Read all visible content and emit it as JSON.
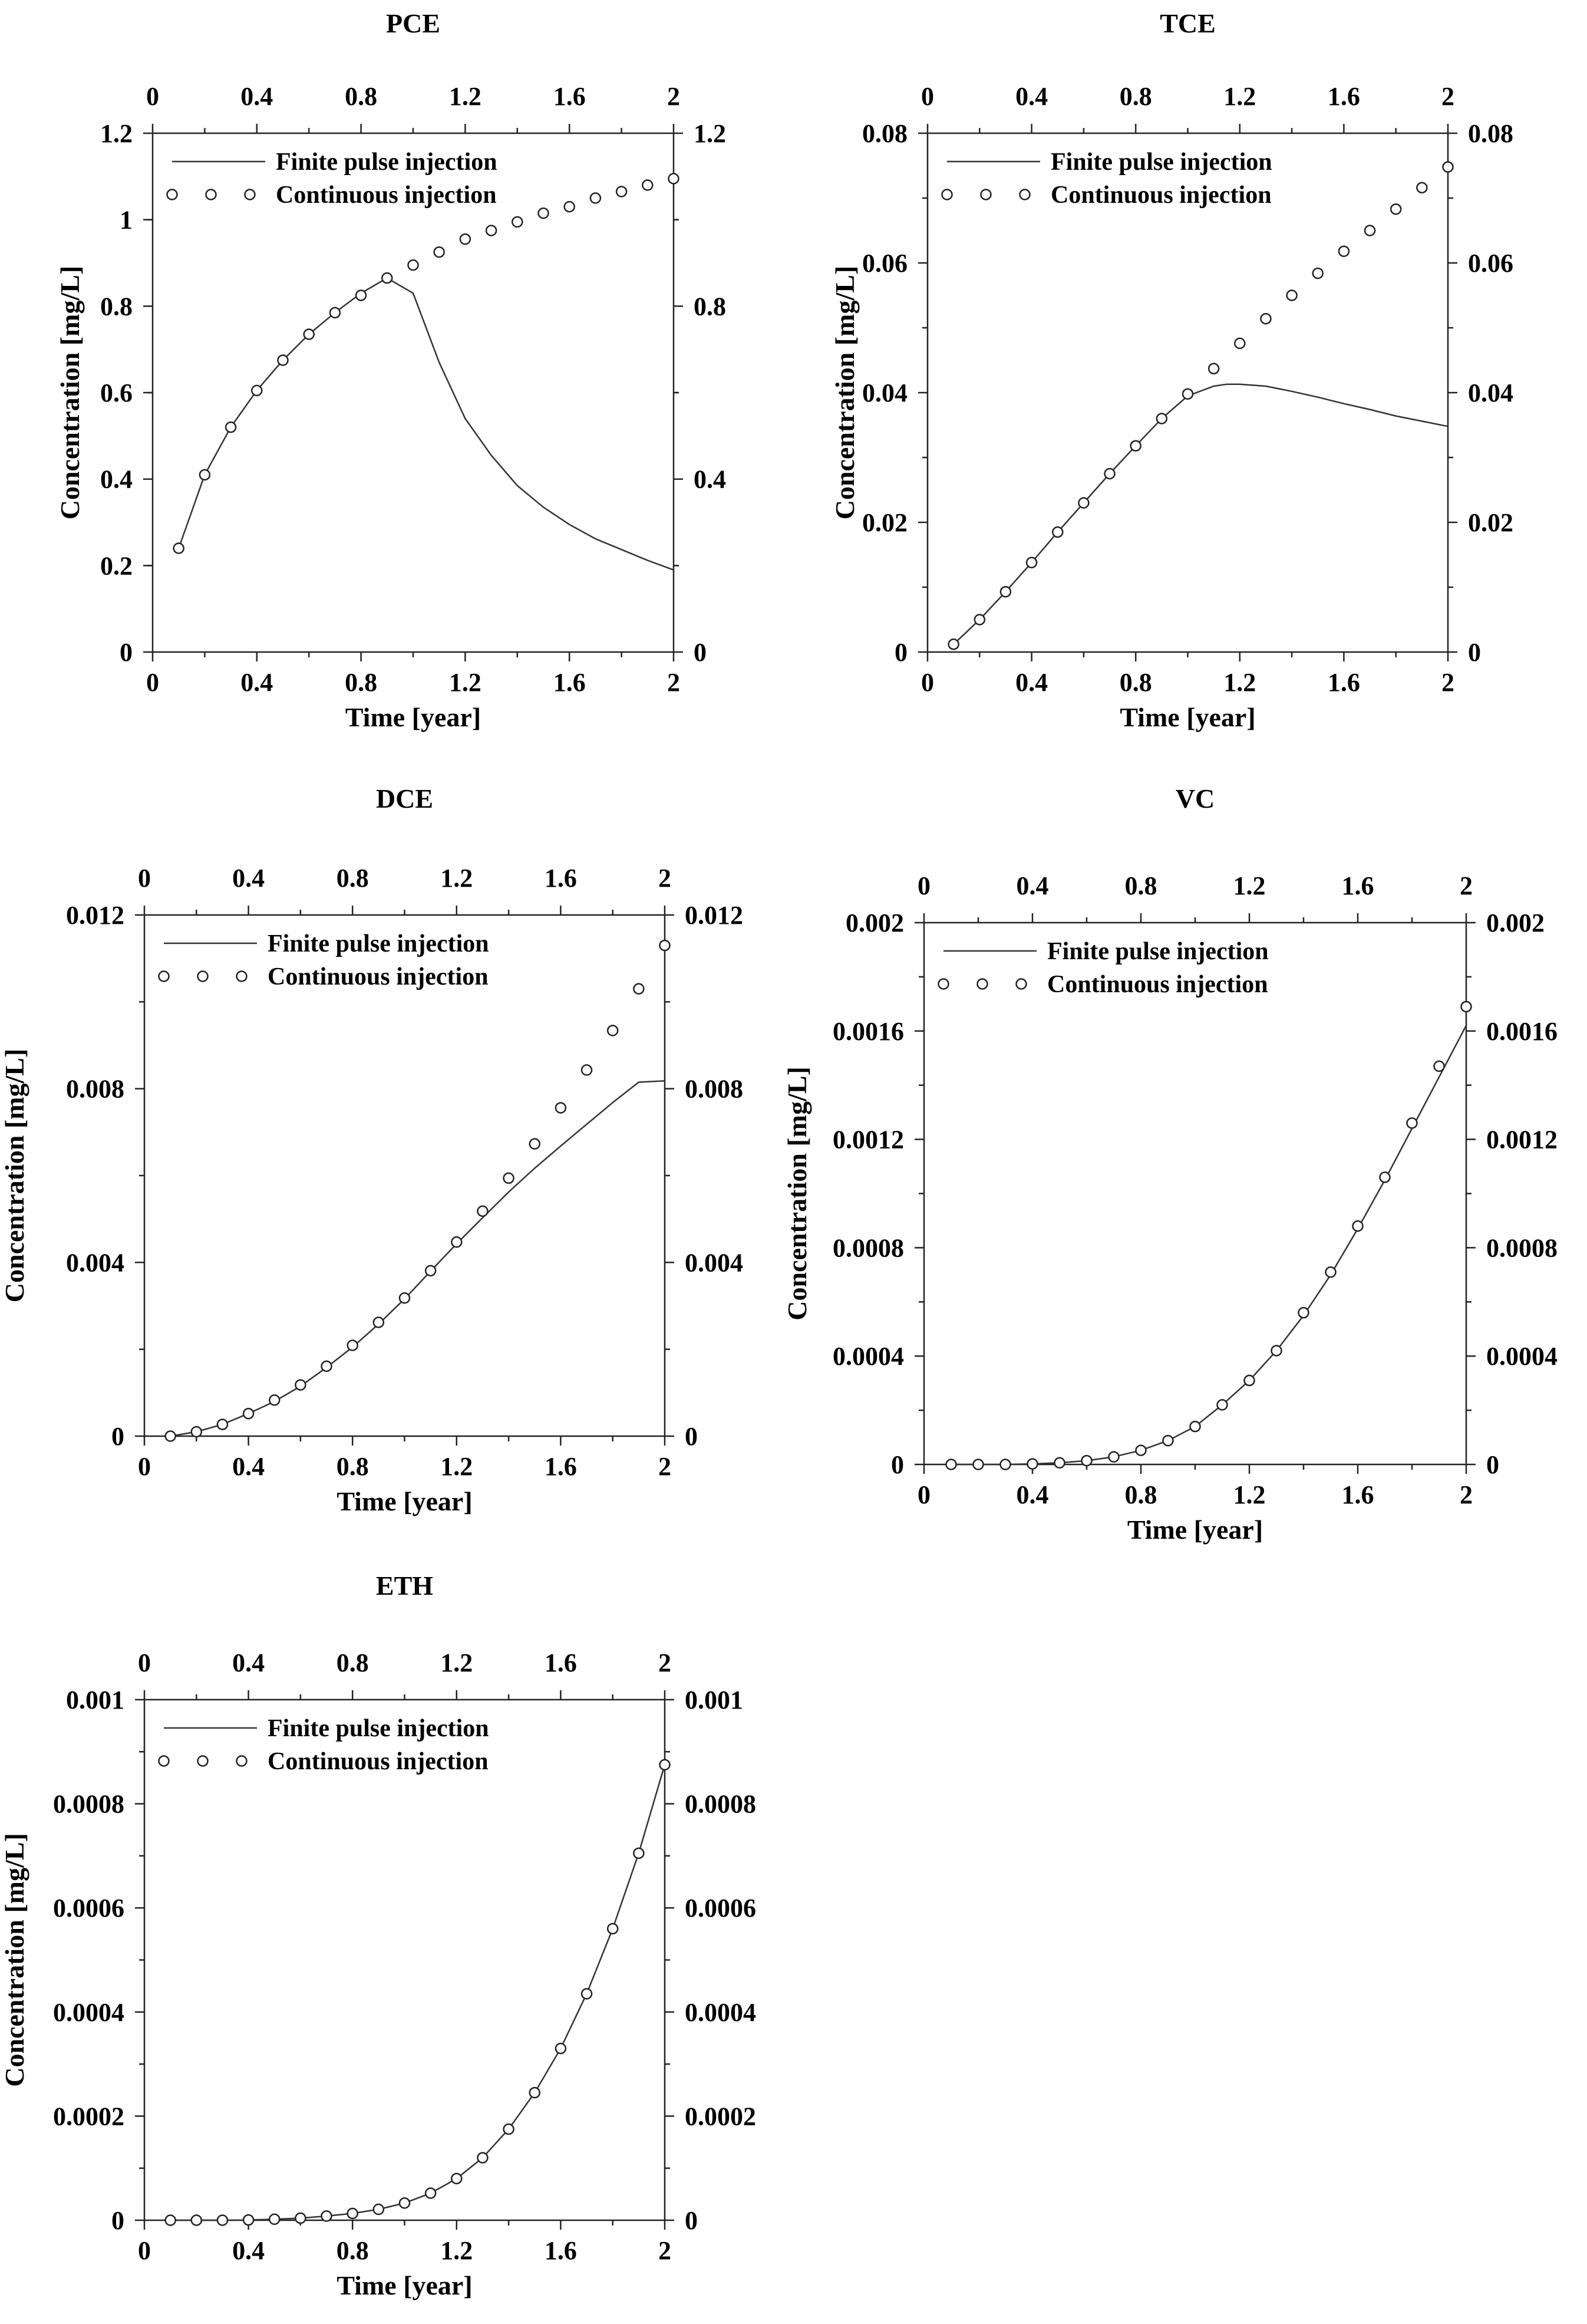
{
  "figure": {
    "legend_line_label": "Finite pulse injection",
    "legend_marker_label": "Continuous injection"
  },
  "chart_data": [
    {
      "type": "line",
      "title": "PCE",
      "xlabel": "Time [year]",
      "ylabel": "Concentration [mg/L]",
      "xlim": [
        0,
        2
      ],
      "ylim": [
        0,
        1.2
      ],
      "x_ticks": [
        0,
        0.4,
        0.8,
        1.2,
        1.6,
        2
      ],
      "x_tick_labels": [
        "0",
        "0.4",
        "0.8",
        "1.2",
        "1.6",
        "2"
      ],
      "y_ticks": [
        0,
        0.4,
        0.8,
        1.2
      ],
      "y_tick_labels": [
        "0",
        "0.4",
        "0.8",
        "1.2"
      ],
      "y_labels_also": [
        {
          "v": 0.2,
          "t": "0.2"
        },
        {
          "v": 0.6,
          "t": "0.6"
        },
        {
          "v": 1.0,
          "t": "1"
        }
      ],
      "grid": false,
      "legend": "top-left",
      "series": [
        {
          "name": "Finite pulse injection",
          "style": "line",
          "x": [
            0.1,
            0.2,
            0.3,
            0.4,
            0.5,
            0.6,
            0.7,
            0.8,
            0.9,
            1.0,
            1.1,
            1.2,
            1.3,
            1.4,
            1.5,
            1.6,
            1.7,
            1.8,
            1.9,
            2.0
          ],
          "y": [
            0.24,
            0.41,
            0.52,
            0.605,
            0.675,
            0.735,
            0.785,
            0.83,
            0.865,
            0.83,
            0.67,
            0.54,
            0.455,
            0.385,
            0.335,
            0.295,
            0.262,
            0.237,
            0.212,
            0.19
          ]
        },
        {
          "name": "Continuous injection",
          "style": "markers",
          "x": [
            0.1,
            0.2,
            0.3,
            0.4,
            0.5,
            0.6,
            0.7,
            0.8,
            0.9,
            1.0,
            1.1,
            1.2,
            1.3,
            1.4,
            1.5,
            1.6,
            1.7,
            1.8,
            1.9,
            2.0
          ],
          "y": [
            0.24,
            0.41,
            0.52,
            0.605,
            0.675,
            0.735,
            0.785,
            0.825,
            0.865,
            0.895,
            0.925,
            0.955,
            0.975,
            0.995,
            1.015,
            1.03,
            1.05,
            1.065,
            1.08,
            1.095
          ]
        }
      ]
    },
    {
      "type": "line",
      "title": "TCE",
      "xlabel": "Time [year]",
      "ylabel": "Concentration [mg/L]",
      "xlim": [
        0,
        2
      ],
      "ylim": [
        0,
        0.08
      ],
      "x_ticks": [
        0,
        0.4,
        0.8,
        1.2,
        1.6,
        2
      ],
      "x_tick_labels": [
        "0",
        "0.4",
        "0.8",
        "1.2",
        "1.6",
        "2"
      ],
      "y_ticks": [
        0,
        0.02,
        0.04,
        0.06,
        0.08
      ],
      "y_tick_labels": [
        "0",
        "0.02",
        "0.04",
        "0.06",
        "0.08"
      ],
      "grid": false,
      "legend": "top-left",
      "series": [
        {
          "name": "Finite pulse injection",
          "style": "line",
          "x": [
            0.1,
            0.2,
            0.3,
            0.4,
            0.5,
            0.6,
            0.7,
            0.8,
            0.9,
            1.0,
            1.1,
            1.15,
            1.2,
            1.3,
            1.4,
            1.5,
            1.6,
            1.7,
            1.8,
            1.9,
            2.0
          ],
          "y": [
            0.0012,
            0.005,
            0.0093,
            0.0138,
            0.0185,
            0.023,
            0.0275,
            0.0318,
            0.036,
            0.0395,
            0.041,
            0.0413,
            0.0413,
            0.041,
            0.0402,
            0.0393,
            0.0383,
            0.0374,
            0.0364,
            0.0356,
            0.0348
          ]
        },
        {
          "name": "Continuous injection",
          "style": "markers",
          "x": [
            0.1,
            0.2,
            0.3,
            0.4,
            0.5,
            0.6,
            0.7,
            0.8,
            0.9,
            1.0,
            1.1,
            1.2,
            1.3,
            1.4,
            1.5,
            1.6,
            1.7,
            1.8,
            1.9,
            2.0
          ],
          "y": [
            0.0012,
            0.005,
            0.0093,
            0.0138,
            0.0185,
            0.023,
            0.0275,
            0.0318,
            0.036,
            0.0398,
            0.0437,
            0.0476,
            0.0514,
            0.055,
            0.0584,
            0.0618,
            0.065,
            0.0683,
            0.0716,
            0.0748
          ]
        }
      ]
    },
    {
      "type": "line",
      "title": "DCE",
      "xlabel": "Time [year]",
      "ylabel": "Concentration [mg/L]",
      "xlim": [
        0,
        2
      ],
      "ylim": [
        0,
        0.012
      ],
      "x_ticks": [
        0,
        0.4,
        0.8,
        1.2,
        1.6,
        2
      ],
      "x_tick_labels": [
        "0",
        "0.4",
        "0.8",
        "1.2",
        "1.6",
        "2"
      ],
      "y_ticks": [
        0,
        0.004,
        0.008,
        0.012
      ],
      "y_tick_labels": [
        "0",
        "0.004",
        "0.008",
        "0.012"
      ],
      "grid": false,
      "legend": "top-left",
      "series": [
        {
          "name": "Finite pulse injection",
          "style": "line",
          "x": [
            0.1,
            0.2,
            0.3,
            0.4,
            0.5,
            0.6,
            0.7,
            0.8,
            0.9,
            1.0,
            1.1,
            1.2,
            1.3,
            1.4,
            1.5,
            1.6,
            1.7,
            1.8,
            1.9,
            2.0
          ],
          "y": [
            0.0,
            0.0001,
            0.00027,
            0.00052,
            0.0008,
            0.00115,
            0.00158,
            0.00205,
            0.00258,
            0.00316,
            0.0038,
            0.00443,
            0.00503,
            0.00562,
            0.00617,
            0.00668,
            0.00718,
            0.00768,
            0.00815,
            0.00818
          ]
        },
        {
          "name": "Continuous injection",
          "style": "markers",
          "x": [
            0.1,
            0.2,
            0.3,
            0.4,
            0.5,
            0.6,
            0.7,
            0.8,
            0.9,
            1.0,
            1.1,
            1.2,
            1.3,
            1.4,
            1.5,
            1.6,
            1.7,
            1.8,
            1.9,
            2.0
          ],
          "y": [
            0.0,
            0.0001,
            0.00027,
            0.00052,
            0.00083,
            0.00118,
            0.00161,
            0.00209,
            0.00262,
            0.00318,
            0.00381,
            0.00447,
            0.00518,
            0.00594,
            0.00673,
            0.00756,
            0.00843,
            0.00934,
            0.0103,
            0.0113
          ]
        }
      ]
    },
    {
      "type": "line",
      "title": "VC",
      "xlabel": "Time [year]",
      "ylabel": "Concentration [mg/L]",
      "xlim": [
        0,
        2
      ],
      "ylim": [
        0,
        0.002
      ],
      "x_ticks": [
        0,
        0.4,
        0.8,
        1.2,
        1.6,
        2
      ],
      "x_tick_labels": [
        "0",
        "0.4",
        "0.8",
        "1.2",
        "1.6",
        "2"
      ],
      "y_ticks": [
        0,
        0.0004,
        0.0008,
        0.0012,
        0.0016,
        0.002
      ],
      "y_tick_labels": [
        "0",
        "0.0004",
        "0.0008",
        "0.0012",
        "0.0016",
        "0.002"
      ],
      "grid": false,
      "legend": "top-left",
      "series": [
        {
          "name": "Finite pulse injection",
          "style": "line",
          "x": [
            0.1,
            0.2,
            0.3,
            0.4,
            0.5,
            0.6,
            0.7,
            0.8,
            0.9,
            1.0,
            1.1,
            1.2,
            1.3,
            1.4,
            1.5,
            1.6,
            1.7,
            1.8,
            1.9,
            2.0
          ],
          "y": [
            0.0,
            0.0,
            0.0,
            2e-06,
            6e-06,
            1.4e-05,
            2.8e-05,
            5.2e-05,
            8.8e-05,
            0.00014,
            0.00022,
            0.00031,
            0.00042,
            0.00055,
            0.0007,
            0.00087,
            0.00105,
            0.00124,
            0.00143,
            0.00162
          ]
        },
        {
          "name": "Continuous injection",
          "style": "markers",
          "x": [
            0.1,
            0.2,
            0.3,
            0.4,
            0.5,
            0.6,
            0.7,
            0.8,
            0.9,
            1.0,
            1.1,
            1.2,
            1.3,
            1.4,
            1.5,
            1.6,
            1.7,
            1.8,
            1.9,
            2.0
          ],
          "y": [
            0.0,
            0.0,
            0.0,
            2e-06,
            6e-06,
            1.4e-05,
            2.8e-05,
            5.2e-05,
            8.8e-05,
            0.00014,
            0.00022,
            0.00031,
            0.00042,
            0.00056,
            0.00071,
            0.00088,
            0.00106,
            0.00126,
            0.00147,
            0.00169
          ]
        }
      ]
    },
    {
      "type": "line",
      "title": "ETH",
      "xlabel": "Time [year]",
      "ylabel": "Concentration [mg/L]",
      "xlim": [
        0,
        2
      ],
      "ylim": [
        0,
        0.001
      ],
      "x_ticks": [
        0,
        0.4,
        0.8,
        1.2,
        1.6,
        2
      ],
      "x_tick_labels": [
        "0",
        "0.4",
        "0.8",
        "1.2",
        "1.6",
        "2"
      ],
      "y_ticks": [
        0,
        0.0002,
        0.0004,
        0.0006,
        0.0008,
        0.001
      ],
      "y_tick_labels": [
        "0",
        "0.0002",
        "0.0004",
        "0.0006",
        "0.0008",
        "0.001"
      ],
      "grid": false,
      "legend": "top-left",
      "series": [
        {
          "name": "Finite pulse injection",
          "style": "line",
          "x": [
            0.1,
            0.2,
            0.3,
            0.4,
            0.5,
            0.6,
            0.7,
            0.8,
            0.9,
            1.0,
            1.1,
            1.2,
            1.3,
            1.4,
            1.5,
            1.6,
            1.7,
            1.8,
            1.9,
            2.0
          ],
          "y": [
            0.0,
            0.0,
            0.0,
            5e-07,
            2e-06,
            4e-06,
            8e-06,
            1.3e-05,
            2.1e-05,
            3.3e-05,
            5.2e-05,
            8e-05,
            0.00012,
            0.000175,
            0.000245,
            0.00033,
            0.000435,
            0.00056,
            0.000705,
            0.000875
          ]
        },
        {
          "name": "Continuous injection",
          "style": "markers",
          "x": [
            0.1,
            0.2,
            0.3,
            0.4,
            0.5,
            0.6,
            0.7,
            0.8,
            0.9,
            1.0,
            1.1,
            1.2,
            1.3,
            1.4,
            1.5,
            1.6,
            1.7,
            1.8,
            1.9,
            2.0
          ],
          "y": [
            0.0,
            0.0,
            0.0,
            5e-07,
            2e-06,
            4e-06,
            8e-06,
            1.3e-05,
            2.1e-05,
            3.3e-05,
            5.2e-05,
            8e-05,
            0.00012,
            0.000175,
            0.000245,
            0.00033,
            0.000435,
            0.00056,
            0.000705,
            0.000875
          ]
        }
      ]
    }
  ]
}
